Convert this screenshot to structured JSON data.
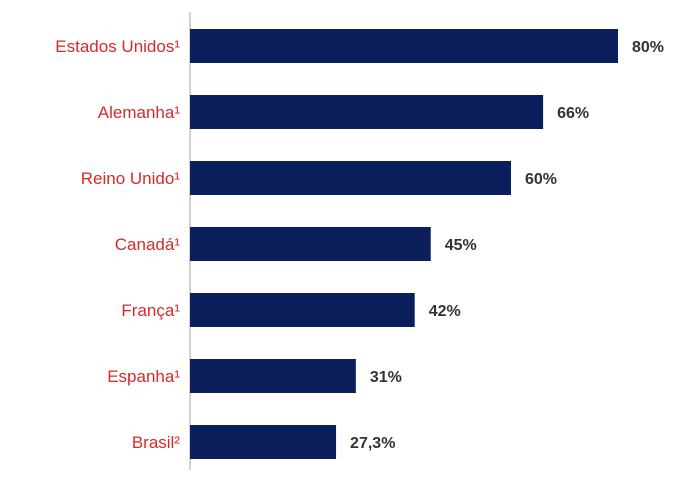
{
  "colors": {
    "bar": "#0b1f5c",
    "category_text": "#d42a2a",
    "value_text": "#333333",
    "axis": "#a6a6a6"
  },
  "chart_data": {
    "type": "bar",
    "orientation": "horizontal",
    "categories": [
      "Estados Unidos¹",
      "Alemanha¹",
      "Reino Unido¹",
      "Canadá¹",
      "França¹",
      "Espanha¹",
      "Brasil²"
    ],
    "values": [
      80,
      66,
      60,
      45,
      42,
      31,
      27.3
    ],
    "value_labels": [
      "80%",
      "66%",
      "60%",
      "45%",
      "42%",
      "31%",
      "27,3%"
    ],
    "xlim": [
      0,
      80
    ],
    "grid": false,
    "legend": "none"
  }
}
